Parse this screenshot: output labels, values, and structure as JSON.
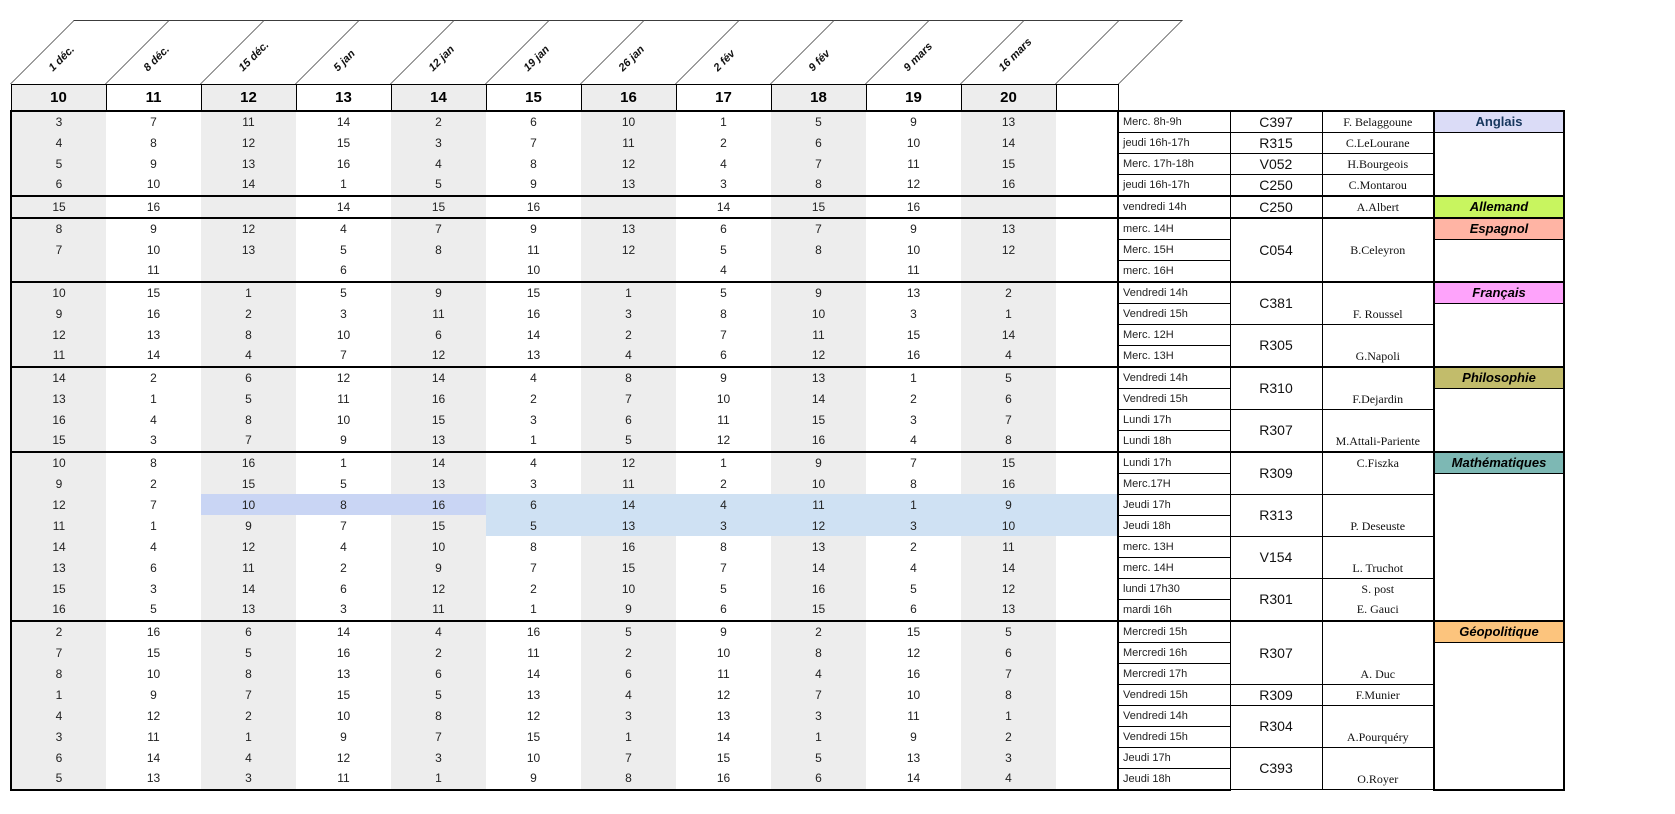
{
  "header": {
    "dates": [
      "1 déc.",
      "8 déc.",
      "15 déc.",
      "5 jan",
      "12 jan",
      "19 jan",
      "26 jan",
      "2 fév",
      "9 fév",
      "9 mars",
      "16 mars"
    ],
    "weeks": [
      "10",
      "11",
      "12",
      "13",
      "14",
      "15",
      "16",
      "17",
      "18",
      "19",
      "20"
    ]
  },
  "colors": {
    "stripe": "#ededed",
    "highlight_a": "#c9d5f4",
    "highlight_b": "#cfe1f3"
  },
  "highlights": [
    {
      "row_index": 18,
      "col_start": 2,
      "col_end": 4,
      "color_key": "highlight_a"
    },
    {
      "row_index": 18,
      "col_start": 5,
      "col_end": 11,
      "color_key": "highlight_b"
    },
    {
      "row_index": 19,
      "col_start": 5,
      "col_end": 11,
      "color_key": "highlight_b"
    }
  ],
  "groups": [
    {
      "subject": "Anglais",
      "color": "#dbdcf7",
      "label_color": "#16365d",
      "upright": true,
      "rows": [
        {
          "values": [
            "3",
            "7",
            "11",
            "14",
            "2",
            "6",
            "10",
            "1",
            "5",
            "9",
            "13"
          ],
          "time": "Merc. 8h-9h"
        },
        {
          "values": [
            "4",
            "8",
            "12",
            "15",
            "3",
            "7",
            "11",
            "2",
            "6",
            "10",
            "14"
          ],
          "time": "jeudi 16h-17h"
        },
        {
          "values": [
            "5",
            "9",
            "13",
            "16",
            "4",
            "8",
            "12",
            "4",
            "7",
            "11",
            "15"
          ],
          "time": "Merc. 17h-18h"
        },
        {
          "values": [
            "6",
            "10",
            "14",
            "1",
            "5",
            "9",
            "13",
            "3",
            "8",
            "12",
            "16"
          ],
          "time": "jeudi 16h-17h"
        }
      ],
      "blocks": [
        {
          "start": 0,
          "span": 1,
          "room": "C397",
          "teachers": [
            "F. Belaggoune"
          ],
          "align": "middle"
        },
        {
          "start": 1,
          "span": 1,
          "room": "R315",
          "teachers": [
            "C.LeLourane"
          ],
          "align": "middle"
        },
        {
          "start": 2,
          "span": 1,
          "room": "V052",
          "teachers": [
            "H.Bourgeois"
          ],
          "align": "middle"
        },
        {
          "start": 3,
          "span": 1,
          "room": "C250",
          "teachers": [
            "C.Montarou"
          ],
          "align": "middle"
        }
      ]
    },
    {
      "subject": "Allemand",
      "color": "#c8f55f",
      "label_color": "#000000",
      "upright": false,
      "rows": [
        {
          "values": [
            "15",
            "16",
            "",
            "14",
            "15",
            "16",
            "",
            "14",
            "15",
            "16",
            ""
          ],
          "time": "vendredi 14h"
        }
      ],
      "blocks": [
        {
          "start": 0,
          "span": 1,
          "room": "C250",
          "teachers": [
            "A.Albert"
          ],
          "align": "middle"
        }
      ]
    },
    {
      "subject": "Espagnol",
      "color": "#ffb4a4",
      "label_color": "#000000",
      "upright": false,
      "rows": [
        {
          "values": [
            "8",
            "9",
            "12",
            "4",
            "7",
            "9",
            "13",
            "6",
            "7",
            "9",
            "13"
          ],
          "time": "merc. 14H"
        },
        {
          "values": [
            "7",
            "10",
            "13",
            "5",
            "8",
            "11",
            "12",
            "5",
            "8",
            "10",
            "12"
          ],
          "time": "Merc. 15H"
        },
        {
          "values": [
            "",
            "11",
            "",
            "6",
            "",
            "10",
            "",
            "4",
            "",
            "11",
            ""
          ],
          "time": "merc. 16H"
        }
      ],
      "blocks": [
        {
          "start": 0,
          "span": 3,
          "room": "C054",
          "teachers": [
            "B.Celeyron"
          ],
          "align": "middle"
        }
      ]
    },
    {
      "subject": "Français",
      "color": "#fea3fb",
      "label_color": "#000000",
      "upright": false,
      "rows": [
        {
          "values": [
            "10",
            "15",
            "1",
            "5",
            "9",
            "15",
            "1",
            "5",
            "9",
            "13",
            "2"
          ],
          "time": "Vendredi 14h"
        },
        {
          "values": [
            "9",
            "16",
            "2",
            "3",
            "11",
            "16",
            "3",
            "8",
            "10",
            "3",
            "1"
          ],
          "time": "Vendredi 15h"
        },
        {
          "values": [
            "12",
            "13",
            "8",
            "10",
            "6",
            "14",
            "2",
            "7",
            "11",
            "15",
            "14"
          ],
          "time": "Merc. 12H"
        },
        {
          "values": [
            "11",
            "14",
            "4",
            "7",
            "12",
            "13",
            "4",
            "6",
            "12",
            "16",
            "4"
          ],
          "time": "Merc. 13H"
        }
      ],
      "blocks": [
        {
          "start": 0,
          "span": 2,
          "room": "C381",
          "teachers": [
            "F. Roussel"
          ],
          "align": "bottom"
        },
        {
          "start": 2,
          "span": 2,
          "room": "R305",
          "teachers": [
            "G.Napoli"
          ],
          "align": "bottom"
        }
      ]
    },
    {
      "subject": "Philosophie",
      "color": "#c2bc6b",
      "label_color": "#000000",
      "upright": false,
      "rows": [
        {
          "values": [
            "14",
            "2",
            "6",
            "12",
            "14",
            "4",
            "8",
            "9",
            "13",
            "1",
            "5"
          ],
          "time": "Vendredi 14h"
        },
        {
          "values": [
            "13",
            "1",
            "5",
            "11",
            "16",
            "2",
            "7",
            "10",
            "14",
            "2",
            "6"
          ],
          "time": "Vendredi 15h"
        },
        {
          "values": [
            "16",
            "4",
            "8",
            "10",
            "15",
            "3",
            "6",
            "11",
            "15",
            "3",
            "7"
          ],
          "time": "Lundi 17h"
        },
        {
          "values": [
            "15",
            "3",
            "7",
            "9",
            "13",
            "1",
            "5",
            "12",
            "16",
            "4",
            "8"
          ],
          "time": "Lundi 18h"
        }
      ],
      "blocks": [
        {
          "start": 0,
          "span": 2,
          "room": "R310",
          "teachers": [
            "F.Dejardin"
          ],
          "align": "bottom"
        },
        {
          "start": 2,
          "span": 2,
          "room": "R307",
          "teachers": [
            "M.Attali-Pariente"
          ],
          "align": "bottom"
        }
      ]
    },
    {
      "subject": "Mathématiques",
      "color": "#7db8b4",
      "label_color": "#000000",
      "upright": false,
      "rows": [
        {
          "values": [
            "10",
            "8",
            "16",
            "1",
            "14",
            "4",
            "12",
            "1",
            "9",
            "7",
            "15"
          ],
          "time": "Lundi 17h"
        },
        {
          "values": [
            "9",
            "2",
            "15",
            "5",
            "13",
            "3",
            "11",
            "2",
            "10",
            "8",
            "16"
          ],
          "time": "Merc.17H"
        },
        {
          "values": [
            "12",
            "7",
            "10",
            "8",
            "16",
            "6",
            "14",
            "4",
            "11",
            "1",
            "9"
          ],
          "time": "Jeudi 17h"
        },
        {
          "values": [
            "11",
            "1",
            "9",
            "7",
            "15",
            "5",
            "13",
            "3",
            "12",
            "3",
            "10"
          ],
          "time": "Jeudi 18h"
        },
        {
          "values": [
            "14",
            "4",
            "12",
            "4",
            "10",
            "8",
            "16",
            "8",
            "13",
            "2",
            "11"
          ],
          "time": "merc. 13H"
        },
        {
          "values": [
            "13",
            "6",
            "11",
            "2",
            "9",
            "7",
            "15",
            "7",
            "14",
            "4",
            "14"
          ],
          "time": "merc. 14H"
        },
        {
          "values": [
            "15",
            "3",
            "14",
            "6",
            "12",
            "2",
            "10",
            "5",
            "16",
            "5",
            "12"
          ],
          "time": "lundi 17h30"
        },
        {
          "values": [
            "16",
            "5",
            "13",
            "3",
            "11",
            "1",
            "9",
            "6",
            "15",
            "6",
            "13"
          ],
          "time": "mardi 16h"
        }
      ],
      "blocks": [
        {
          "start": 0,
          "span": 2,
          "room": "R309",
          "teachers": [
            "C.Fiszka"
          ],
          "align": "top"
        },
        {
          "start": 2,
          "span": 2,
          "room": "R313",
          "teachers": [
            "P. Deseuste"
          ],
          "align": "bottom"
        },
        {
          "start": 4,
          "span": 2,
          "room": "V154",
          "teachers": [
            "L. Truchot"
          ],
          "align": "bottom"
        },
        {
          "start": 6,
          "span": 2,
          "room": "R301",
          "teachers": [
            "S. post",
            "E. Gauci"
          ],
          "align": "middle"
        }
      ]
    },
    {
      "subject": "Géopolitique",
      "color": "#fcc47d",
      "label_color": "#000000",
      "upright": false,
      "rows": [
        {
          "values": [
            "2",
            "16",
            "6",
            "14",
            "4",
            "16",
            "5",
            "9",
            "2",
            "15",
            "5"
          ],
          "time": "Mercredi 15h"
        },
        {
          "values": [
            "7",
            "15",
            "5",
            "16",
            "2",
            "11",
            "2",
            "10",
            "8",
            "12",
            "6"
          ],
          "time": "Mercredi 16h"
        },
        {
          "values": [
            "8",
            "10",
            "8",
            "13",
            "6",
            "14",
            "6",
            "11",
            "4",
            "16",
            "7"
          ],
          "time": "Mercredi 17h"
        },
        {
          "values": [
            "1",
            "9",
            "7",
            "15",
            "5",
            "13",
            "4",
            "12",
            "7",
            "10",
            "8"
          ],
          "time": "Vendredi 15h"
        },
        {
          "values": [
            "4",
            "12",
            "2",
            "10",
            "8",
            "12",
            "3",
            "13",
            "3",
            "11",
            "1"
          ],
          "time": "Vendredi 14h"
        },
        {
          "values": [
            "3",
            "11",
            "1",
            "9",
            "7",
            "15",
            "1",
            "14",
            "1",
            "9",
            "2"
          ],
          "time": "Vendredi 15h"
        },
        {
          "values": [
            "6",
            "14",
            "4",
            "12",
            "3",
            "10",
            "7",
            "15",
            "5",
            "13",
            "3"
          ],
          "time": "Jeudi 17h"
        },
        {
          "values": [
            "5",
            "13",
            "3",
            "11",
            "1",
            "9",
            "8",
            "16",
            "6",
            "14",
            "4"
          ],
          "time": "Jeudi 18h"
        }
      ],
      "blocks": [
        {
          "start": 0,
          "span": 3,
          "room": "R307",
          "teachers": [
            "A. Duc"
          ],
          "align": "bottom"
        },
        {
          "start": 3,
          "span": 1,
          "room": "R309",
          "teachers": [
            "F.Munier"
          ],
          "align": "middle"
        },
        {
          "start": 4,
          "span": 2,
          "room": "R304",
          "teachers": [
            "A.Pourquéry"
          ],
          "align": "bottom"
        },
        {
          "start": 6,
          "span": 2,
          "room": "C393",
          "teachers": [
            "O.Royer"
          ],
          "align": "bottom"
        }
      ]
    }
  ]
}
